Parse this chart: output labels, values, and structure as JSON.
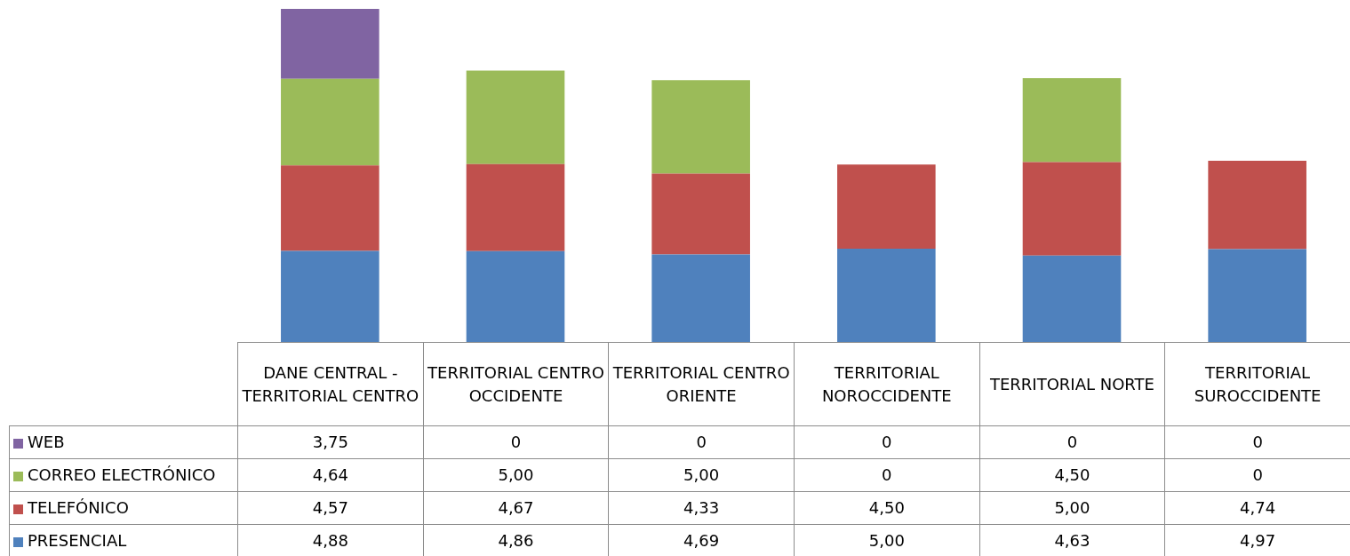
{
  "chart_data": {
    "type": "bar",
    "stacked": true,
    "data_labels": false,
    "legend": "bottom left",
    "categories": [
      "DANE CENTRAL - TERRITORIAL CENTRO",
      "TERRITORIAL CENTRO OCCIDENTE",
      "TERRITORIAL CENTRO ORIENTE",
      "TERRITORIAL NOROCCIDENTE",
      "TERRITORIAL NORTE",
      "TERRITORIAL SUROCCIDENTE"
    ],
    "series": [
      {
        "name": "PRESENCIAL",
        "color": "#4f81bd",
        "values": [
          4.88,
          4.86,
          4.69,
          5.0,
          4.63,
          4.97
        ],
        "value_labels": [
          "4,88",
          "4,86",
          "4,69",
          "5,00",
          "4,63",
          "4,97"
        ]
      },
      {
        "name": "TELEFÓNICO",
        "color": "#c0504d",
        "values": [
          4.57,
          4.67,
          4.33,
          4.5,
          5.0,
          4.74
        ],
        "value_labels": [
          "4,57",
          "4,67",
          "4,33",
          "4,50",
          "5,00",
          "4,74"
        ]
      },
      {
        "name": "CORREO ELECTRÓNICO",
        "color": "#9bbb59",
        "values": [
          4.64,
          5.0,
          5.0,
          0,
          4.5,
          0
        ],
        "value_labels": [
          "4,64",
          "5,00",
          "5,00",
          "0",
          "4,50",
          "0"
        ]
      },
      {
        "name": "WEB",
        "color": "#8064a2",
        "values": [
          3.75,
          0,
          0,
          0,
          0,
          0
        ],
        "value_labels": [
          "3,75",
          "0",
          "0",
          "0",
          "0",
          "0"
        ]
      }
    ]
  }
}
